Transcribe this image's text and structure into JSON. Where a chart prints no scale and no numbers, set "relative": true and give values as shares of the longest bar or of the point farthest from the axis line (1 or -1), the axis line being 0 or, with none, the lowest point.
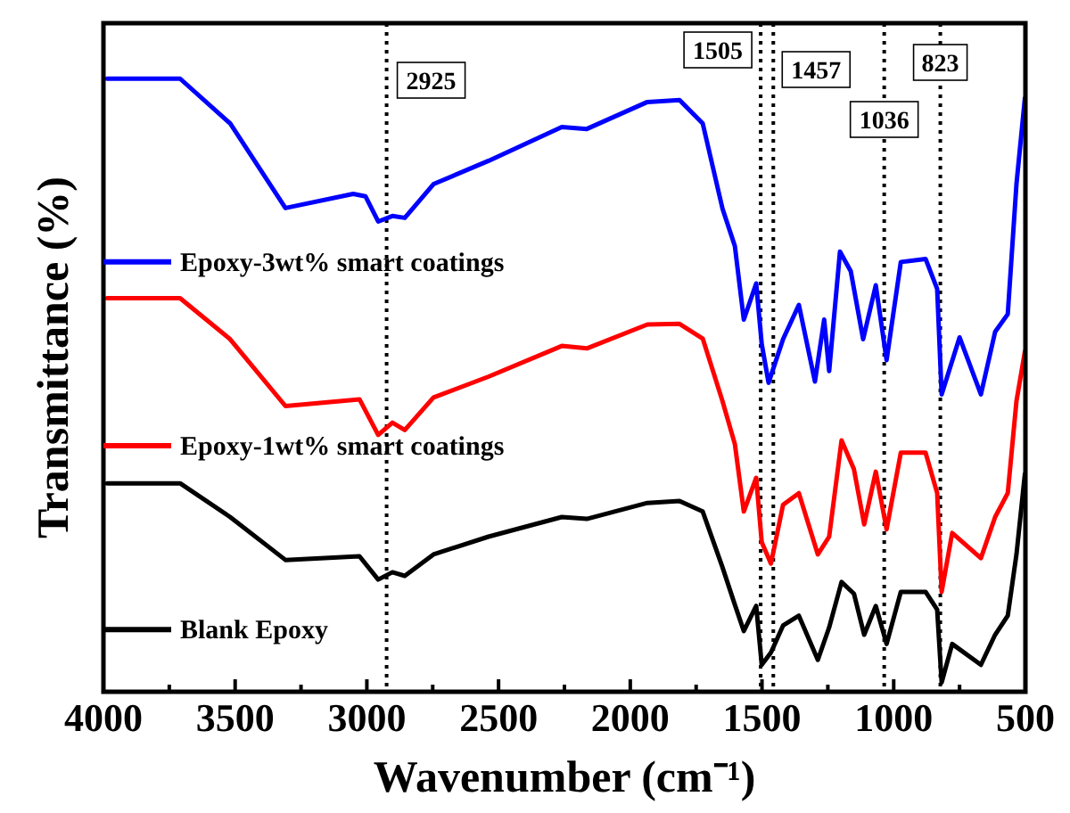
{
  "chart_data": {
    "type": "line",
    "relative": true,
    "xlabel": "Wavenumber (cm⁻¹)",
    "ylabel": "Transmittance (%)",
    "xlim": [
      4000,
      500
    ],
    "xticks": [
      4000,
      {
        "value": 3750,
        "label": null
      },
      3500,
      {
        "value": 3250,
        "label": null
      },
      3000,
      {
        "value": 2750,
        "label": null
      },
      2500,
      {
        "value": 2250,
        "label": null
      },
      2000,
      {
        "value": 1750,
        "label": null
      },
      1500,
      {
        "value": 1250,
        "label": null
      },
      1000,
      {
        "value": 750,
        "label": null
      },
      500
    ],
    "legend": "left",
    "line_style": "solid",
    "ref_lines": [
      {
        "axis": "x",
        "value": 2925,
        "label": "2925",
        "line_style": "dotted"
      },
      {
        "axis": "x",
        "value": 1505,
        "label": "1505",
        "line_style": "dotted"
      },
      {
        "axis": "x",
        "value": 1457,
        "label": "1457",
        "line_style": "dotted"
      },
      {
        "axis": "x",
        "value": 1036,
        "label": "1036",
        "line_style": "dotted"
      },
      {
        "axis": "x",
        "value": 823,
        "label": "823",
        "line_style": "dotted"
      }
    ],
    "series": [
      {
        "name": "Epoxy-3wt% smart coatings",
        "color": "#0000ff",
        "x": [
          3986,
          3709,
          3519,
          3309,
          3052,
          3005,
          2957,
          2903,
          2856,
          2747,
          2538,
          2260,
          2165,
          1935,
          1813,
          1725,
          1650,
          1603,
          1569,
          1522,
          1501,
          1475,
          1420,
          1360,
          1299,
          1264,
          1245,
          1204,
          1163,
          1116,
          1068,
          1027,
          973,
          879,
          835,
          818,
          750,
          669,
          615,
          567,
          534,
          502
        ],
        "values": [
          1.0,
          1.0,
          0.927,
          0.789,
          0.812,
          0.808,
          0.767,
          0.776,
          0.773,
          0.828,
          0.866,
          0.921,
          0.918,
          0.962,
          0.965,
          0.927,
          0.788,
          0.727,
          0.607,
          0.666,
          0.567,
          0.504,
          0.575,
          0.631,
          0.506,
          0.607,
          0.523,
          0.718,
          0.686,
          0.575,
          0.663,
          0.541,
          0.701,
          0.706,
          0.657,
          0.485,
          0.578,
          0.485,
          0.587,
          0.616,
          0.828,
          0.968
        ]
      },
      {
        "name": "Epoxy-1wt% smart coatings",
        "color": "#ff0000",
        "x": [
          3986,
          3709,
          3519,
          3309,
          3028,
          2957,
          2903,
          2856,
          2747,
          2538,
          2260,
          2165,
          1935,
          1813,
          1725,
          1650,
          1603,
          1569,
          1522,
          1501,
          1466,
          1420,
          1360,
          1288,
          1245,
          1198,
          1151,
          1112,
          1068,
          1027,
          973,
          879,
          835,
          818,
          778,
          669,
          615,
          567,
          534,
          502
        ],
        "values": [
          0.642,
          0.642,
          0.575,
          0.466,
          0.477,
          0.419,
          0.439,
          0.427,
          0.48,
          0.514,
          0.564,
          0.56,
          0.599,
          0.6,
          0.576,
          0.474,
          0.404,
          0.294,
          0.349,
          0.244,
          0.209,
          0.305,
          0.324,
          0.224,
          0.253,
          0.41,
          0.363,
          0.273,
          0.359,
          0.265,
          0.39,
          0.39,
          0.324,
          0.163,
          0.259,
          0.218,
          0.285,
          0.324,
          0.474,
          0.555
        ]
      },
      {
        "name": "Blank Epoxy",
        "color": "#000000",
        "x": [
          3986,
          3709,
          3519,
          3309,
          3028,
          2957,
          2903,
          2856,
          2747,
          2538,
          2260,
          2165,
          1935,
          1813,
          1725,
          1650,
          1603,
          1569,
          1522,
          1501,
          1466,
          1420,
          1360,
          1288,
          1245,
          1198,
          1151,
          1112,
          1068,
          1027,
          973,
          879,
          835,
          818,
          778,
          669,
          615,
          567,
          534,
          502
        ],
        "values": [
          0.34,
          0.34,
          0.285,
          0.215,
          0.221,
          0.183,
          0.195,
          0.189,
          0.224,
          0.253,
          0.285,
          0.282,
          0.308,
          0.311,
          0.294,
          0.203,
          0.142,
          0.099,
          0.14,
          0.044,
          0.064,
          0.108,
          0.124,
          0.052,
          0.105,
          0.179,
          0.16,
          0.093,
          0.14,
          0.078,
          0.163,
          0.163,
          0.134,
          0.015,
          0.078,
          0.044,
          0.093,
          0.124,
          0.224,
          0.355
        ]
      }
    ]
  }
}
